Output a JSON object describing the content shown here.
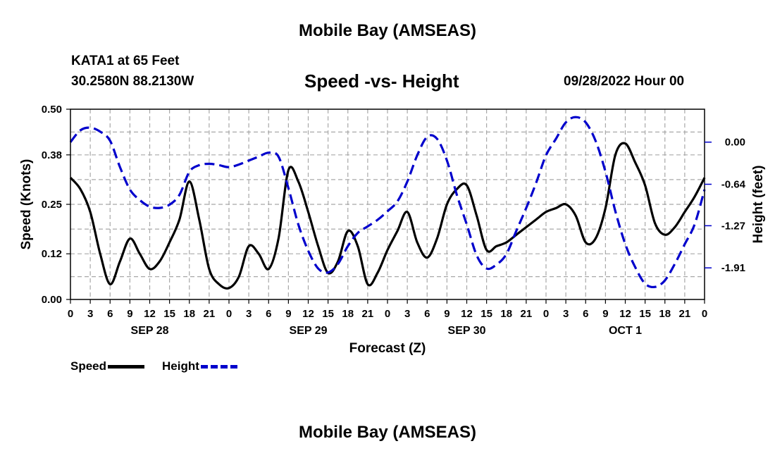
{
  "header": {
    "main_title": "Mobile Bay (AMSEAS)",
    "station": "KATA1 at 65 Feet",
    "coords": "30.2580N  88.2130W",
    "chart_title": "Speed -vs- Height",
    "run_time": "09/28/2022 Hour 00"
  },
  "footer": {
    "title": "Mobile Bay (AMSEAS)"
  },
  "legend": {
    "speed_label": "Speed",
    "height_label": "Height"
  },
  "colors": {
    "speed": "#000000",
    "height": "#0000cc",
    "grid": "#a8a8a8"
  },
  "chart_data": {
    "type": "line",
    "xlabel": "Forecast (Z)",
    "ylabel_left": "Speed (Knots)",
    "ylabel_right": "Height (feet)",
    "x_unit": "forecast hour from 09/28/2022 00Z",
    "xlim": [
      0,
      96
    ],
    "x_tick_labels": [
      "0",
      "3",
      "6",
      "9",
      "12",
      "15",
      "18",
      "21",
      "0",
      "3",
      "6",
      "9",
      "12",
      "15",
      "18",
      "21",
      "0",
      "3",
      "6",
      "9",
      "12",
      "15",
      "18",
      "21",
      "0",
      "3",
      "6",
      "9",
      "12",
      "15",
      "18",
      "21",
      "0"
    ],
    "day_labels": [
      {
        "label": "SEP 28",
        "hour": 12
      },
      {
        "label": "SEP 29",
        "hour": 36
      },
      {
        "label": "SEP 30",
        "hour": 60
      },
      {
        "label": "OCT 1",
        "hour": 84
      }
    ],
    "y_left": {
      "lim": [
        0,
        0.5
      ],
      "ticks": [
        0.0,
        0.12,
        0.25,
        0.38,
        0.5
      ],
      "tick_labels": [
        "0.00",
        "0.12",
        "0.25",
        "0.38",
        "0.50"
      ]
    },
    "y_right": {
      "lim": [
        -2.39,
        0.5
      ],
      "ticks": [
        0.0,
        -0.64,
        -1.27,
        -1.91
      ],
      "tick_labels": [
        "0.00",
        "-0.64",
        "-1.27",
        "-1.91"
      ]
    },
    "grid": true,
    "series": [
      {
        "name": "Speed",
        "axis": "left",
        "style": "solid",
        "x": [
          0,
          1.5,
          3,
          4.5,
          6,
          7.5,
          9,
          10.5,
          12,
          13.5,
          15,
          16.5,
          18,
          19.5,
          21,
          22.5,
          24,
          25.5,
          27,
          28.5,
          30,
          31.5,
          33,
          34.5,
          36,
          37.5,
          39,
          40.5,
          42,
          43.5,
          45,
          46.5,
          48,
          49.5,
          51,
          52.5,
          54,
          55.5,
          57,
          58.5,
          60,
          61.5,
          63,
          64.5,
          66,
          67.5,
          69,
          70.5,
          72,
          73.5,
          75,
          76.5,
          78,
          79.5,
          81,
          82.5,
          84,
          85.5,
          87,
          88.5,
          90,
          91.5,
          93,
          94.5,
          96
        ],
        "values": [
          0.32,
          0.29,
          0.23,
          0.12,
          0.04,
          0.1,
          0.16,
          0.12,
          0.08,
          0.1,
          0.15,
          0.21,
          0.31,
          0.21,
          0.08,
          0.04,
          0.03,
          0.06,
          0.14,
          0.12,
          0.08,
          0.16,
          0.34,
          0.31,
          0.23,
          0.14,
          0.07,
          0.1,
          0.18,
          0.14,
          0.04,
          0.07,
          0.13,
          0.18,
          0.23,
          0.15,
          0.11,
          0.16,
          0.25,
          0.29,
          0.3,
          0.22,
          0.13,
          0.14,
          0.15,
          0.17,
          0.19,
          0.21,
          0.23,
          0.24,
          0.25,
          0.22,
          0.15,
          0.16,
          0.24,
          0.38,
          0.41,
          0.36,
          0.3,
          0.2,
          0.17,
          0.19,
          0.23,
          0.27,
          0.32
        ]
      },
      {
        "name": "Height",
        "axis": "right",
        "style": "dashed",
        "x": [
          0,
          1.5,
          3,
          4.5,
          6,
          7.5,
          9,
          10.5,
          12,
          13.5,
          15,
          16.5,
          18,
          19.5,
          21,
          22.5,
          24,
          25.5,
          27,
          28.5,
          30,
          31.5,
          33,
          34.5,
          36,
          37.5,
          39,
          40.5,
          42,
          43.5,
          45,
          46.5,
          48,
          49.5,
          51,
          52.5,
          54,
          55.5,
          57,
          58.5,
          60,
          61.5,
          63,
          64.5,
          66,
          67.5,
          69,
          70.5,
          72,
          73.5,
          75,
          76.5,
          78,
          79.5,
          81,
          82.5,
          84,
          85.5,
          87,
          88.5,
          90,
          91.5,
          93,
          94.5,
          96
        ],
        "values": [
          0.0,
          0.18,
          0.22,
          0.16,
          0.02,
          -0.38,
          -0.72,
          -0.88,
          -0.98,
          -1.0,
          -0.95,
          -0.8,
          -0.45,
          -0.35,
          -0.33,
          -0.35,
          -0.38,
          -0.34,
          -0.28,
          -0.22,
          -0.16,
          -0.22,
          -0.7,
          -1.25,
          -1.65,
          -1.92,
          -1.98,
          -1.85,
          -1.58,
          -1.38,
          -1.28,
          -1.18,
          -1.05,
          -0.9,
          -0.6,
          -0.2,
          0.08,
          0.05,
          -0.28,
          -0.8,
          -1.25,
          -1.72,
          -1.92,
          -1.86,
          -1.7,
          -1.35,
          -1.0,
          -0.62,
          -0.2,
          0.05,
          0.3,
          0.38,
          0.3,
          0.02,
          -0.45,
          -1.05,
          -1.55,
          -1.9,
          -2.15,
          -2.2,
          -2.1,
          -1.85,
          -1.55,
          -1.25,
          -0.72
        ]
      }
    ]
  }
}
